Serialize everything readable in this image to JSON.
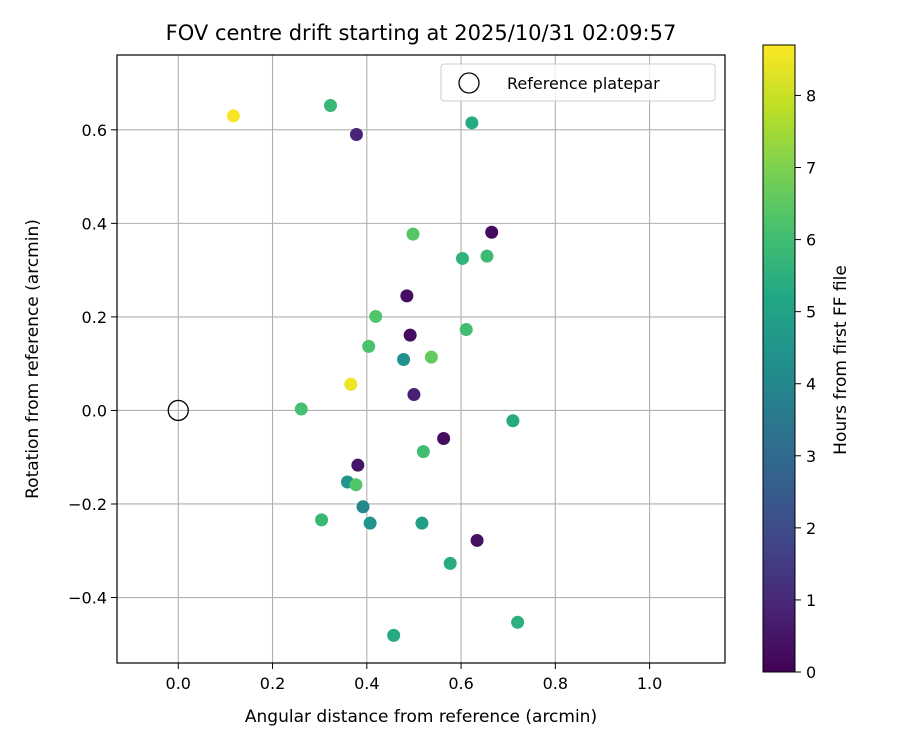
{
  "chart_data": {
    "type": "scatter",
    "title": "FOV centre drift starting at 2025/10/31 02:09:57",
    "xlabel": "Angular distance from reference (arcmin)",
    "ylabel": "Rotation from reference (arcmin)",
    "xlim": [
      -0.13,
      1.16
    ],
    "ylim": [
      -0.54,
      0.76
    ],
    "xticks": [
      0.0,
      0.2,
      0.4,
      0.6,
      0.8,
      1.0
    ],
    "xtick_labels": [
      "0.0",
      "0.2",
      "0.4",
      "0.6",
      "0.8",
      "1.0"
    ],
    "yticks": [
      -0.4,
      -0.2,
      0.0,
      0.2,
      0.4,
      0.6
    ],
    "ytick_labels": [
      "−0.4",
      "−0.2",
      "0.0",
      "0.2",
      "0.4",
      "0.6"
    ],
    "grid": true,
    "legend": {
      "placement": "top-right",
      "entries": [
        "Reference platepar"
      ]
    },
    "reference_point": {
      "x": 0.0,
      "y": 0.0,
      "marker": "hollow circle"
    },
    "colorbar": {
      "label": "Hours from first FF file",
      "colormap": "viridis",
      "range": [
        0,
        8.7
      ],
      "ticks": [
        0,
        1,
        2,
        3,
        4,
        5,
        6,
        7,
        8
      ],
      "tick_labels": [
        "0",
        "1",
        "2",
        "3",
        "4",
        "5",
        "6",
        "7",
        "8"
      ]
    },
    "points": [
      {
        "x": 0.117,
        "y": 0.63,
        "hours": 8.6
      },
      {
        "x": 0.323,
        "y": 0.652,
        "hours": 5.8
      },
      {
        "x": 0.378,
        "y": 0.59,
        "hours": 0.9
      },
      {
        "x": 0.623,
        "y": 0.615,
        "hours": 5.3
      },
      {
        "x": 0.665,
        "y": 0.381,
        "hours": 0.3
      },
      {
        "x": 0.498,
        "y": 0.377,
        "hours": 6.4
      },
      {
        "x": 0.603,
        "y": 0.325,
        "hours": 5.6
      },
      {
        "x": 0.655,
        "y": 0.33,
        "hours": 5.9
      },
      {
        "x": 0.485,
        "y": 0.245,
        "hours": 0.3
      },
      {
        "x": 0.419,
        "y": 0.201,
        "hours": 6.3
      },
      {
        "x": 0.492,
        "y": 0.161,
        "hours": 0.3
      },
      {
        "x": 0.611,
        "y": 0.173,
        "hours": 6.0
      },
      {
        "x": 0.404,
        "y": 0.137,
        "hours": 6.2
      },
      {
        "x": 0.478,
        "y": 0.109,
        "hours": 4.4
      },
      {
        "x": 0.537,
        "y": 0.114,
        "hours": 6.6
      },
      {
        "x": 0.366,
        "y": 0.056,
        "hours": 8.5
      },
      {
        "x": 0.5,
        "y": 0.034,
        "hours": 0.8
      },
      {
        "x": 0.261,
        "y": 0.003,
        "hours": 6.1
      },
      {
        "x": 0.71,
        "y": -0.022,
        "hours": 5.3
      },
      {
        "x": 0.563,
        "y": -0.06,
        "hours": 0.3
      },
      {
        "x": 0.52,
        "y": -0.088,
        "hours": 6.0
      },
      {
        "x": 0.381,
        "y": -0.117,
        "hours": 0.5
      },
      {
        "x": 0.359,
        "y": -0.153,
        "hours": 4.5
      },
      {
        "x": 0.377,
        "y": -0.159,
        "hours": 6.3
      },
      {
        "x": 0.392,
        "y": -0.206,
        "hours": 4.0
      },
      {
        "x": 0.304,
        "y": -0.234,
        "hours": 5.8
      },
      {
        "x": 0.407,
        "y": -0.241,
        "hours": 4.5
      },
      {
        "x": 0.517,
        "y": -0.241,
        "hours": 4.8
      },
      {
        "x": 0.634,
        "y": -0.278,
        "hours": 0.4
      },
      {
        "x": 0.577,
        "y": -0.327,
        "hours": 5.4
      },
      {
        "x": 0.457,
        "y": -0.481,
        "hours": 5.3
      },
      {
        "x": 0.72,
        "y": -0.453,
        "hours": 5.5
      }
    ]
  }
}
